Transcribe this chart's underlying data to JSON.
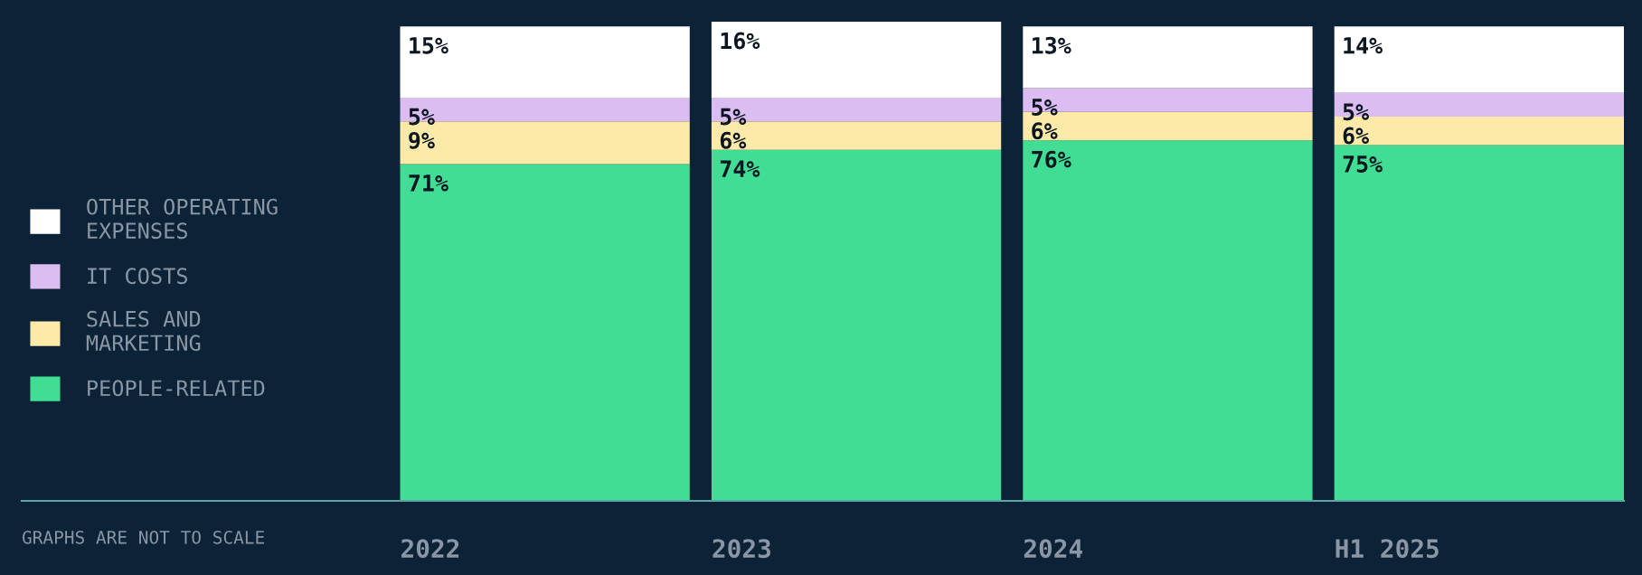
{
  "chart_data": {
    "type": "bar",
    "stacked": true,
    "categories": [
      "2022",
      "2023",
      "2024",
      "H1 2025"
    ],
    "series": [
      {
        "name": "PEOPLE-RELATED",
        "color": "#41dd94",
        "values": [
          71,
          74,
          76,
          75
        ],
        "value_labels": [
          "71%",
          "74%",
          "76%",
          "75%"
        ]
      },
      {
        "name": "SALES AND\nMARKETING",
        "color": "#fde9a8",
        "values": [
          9,
          6,
          6,
          6
        ],
        "value_labels": [
          "9%",
          "6%",
          "6%",
          "6%"
        ]
      },
      {
        "name": "IT COSTS",
        "color": "#dcbdf2",
        "values": [
          5,
          5,
          5,
          5
        ],
        "value_labels": [
          "5%",
          "5%",
          "5%",
          "5%"
        ]
      },
      {
        "name": "OTHER OPERATING\nEXPENSES",
        "color": "#ffffff",
        "values": [
          15,
          16,
          13,
          14
        ],
        "value_labels": [
          "15%",
          "16%",
          "13%",
          "14%"
        ]
      }
    ],
    "legend": "left",
    "grid": false,
    "annotations": [
      "GRAPHS ARE NOT TO SCALE"
    ]
  }
}
